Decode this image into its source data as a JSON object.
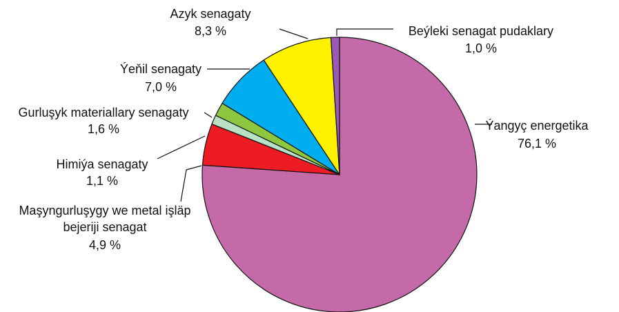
{
  "chart_data": {
    "type": "pie",
    "categories": [
      "Ýangyç energetika",
      "Maşyngurluşygy we metal işläp bejeriji senagat",
      "Himiýa senagaty",
      "Gurluşyk materiallary senagaty",
      "Ýeňil senagaty",
      "Azyk senagaty",
      "Beýleki senagat pudaklary"
    ],
    "values": [
      76.1,
      4.9,
      1.1,
      1.6,
      7.0,
      8.3,
      1.0
    ],
    "value_labels": [
      "76,1 %",
      "4,9 %",
      "1,1 %",
      "1,6 %",
      "7,0 %",
      "8,3 %",
      "1,0 %"
    ],
    "colors": [
      "#c56aa8",
      "#ed1c24",
      "#b8e0c4",
      "#8dc63f",
      "#00aeef",
      "#fff200",
      "#9b59b6"
    ]
  }
}
